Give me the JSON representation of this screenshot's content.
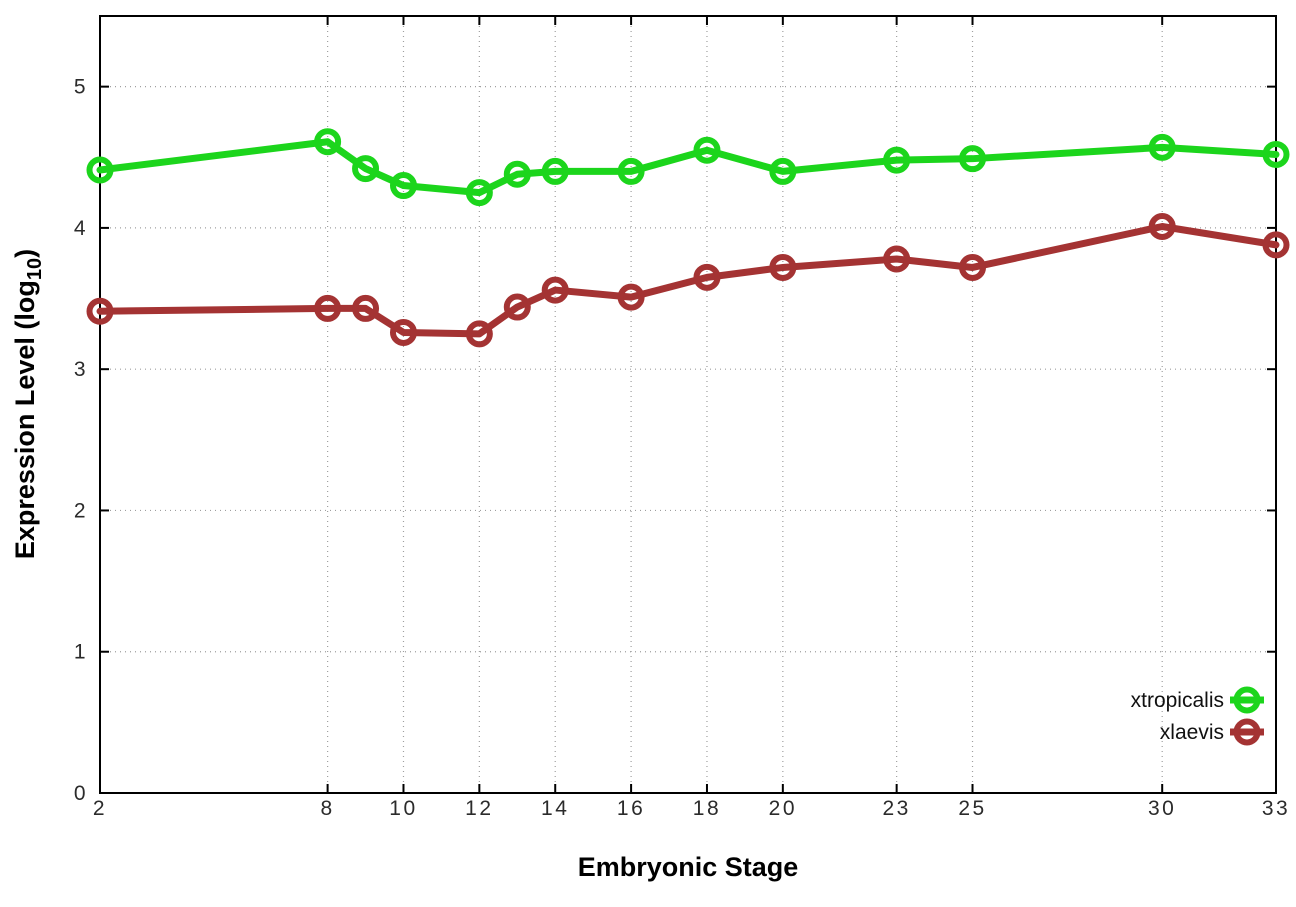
{
  "chart_data": {
    "type": "line",
    "title": "",
    "xlabel": "Embryonic Stage",
    "ylabel_pre": "Expression Level (log",
    "ylabel_sub": "10",
    "ylabel_post": ")",
    "x": [
      2,
      8,
      9,
      10,
      12,
      13,
      14,
      16,
      18,
      20,
      23,
      25,
      30,
      33
    ],
    "series": [
      {
        "name": "xtropicalis",
        "color": "#1cd51c",
        "values": [
          4.41,
          4.61,
          4.42,
          4.3,
          4.25,
          4.38,
          4.4,
          4.4,
          4.55,
          4.4,
          4.48,
          4.49,
          4.57,
          4.52
        ]
      },
      {
        "name": "xlaevis",
        "color": "#a43333",
        "values": [
          3.41,
          3.43,
          3.43,
          3.26,
          3.25,
          3.44,
          3.56,
          3.51,
          3.65,
          3.72,
          3.78,
          3.72,
          4.01,
          3.88
        ]
      }
    ],
    "xlim": [
      2,
      33
    ],
    "ylim": [
      0,
      5.5
    ],
    "xticks": [
      2,
      8,
      10,
      12,
      14,
      16,
      18,
      20,
      23,
      25,
      30,
      33
    ],
    "yticks": [
      0,
      1,
      2,
      3,
      4,
      5
    ],
    "grid": true,
    "grid_style": "dotted",
    "marker": "open-circle",
    "legend_position": "bottom-right-inside"
  }
}
